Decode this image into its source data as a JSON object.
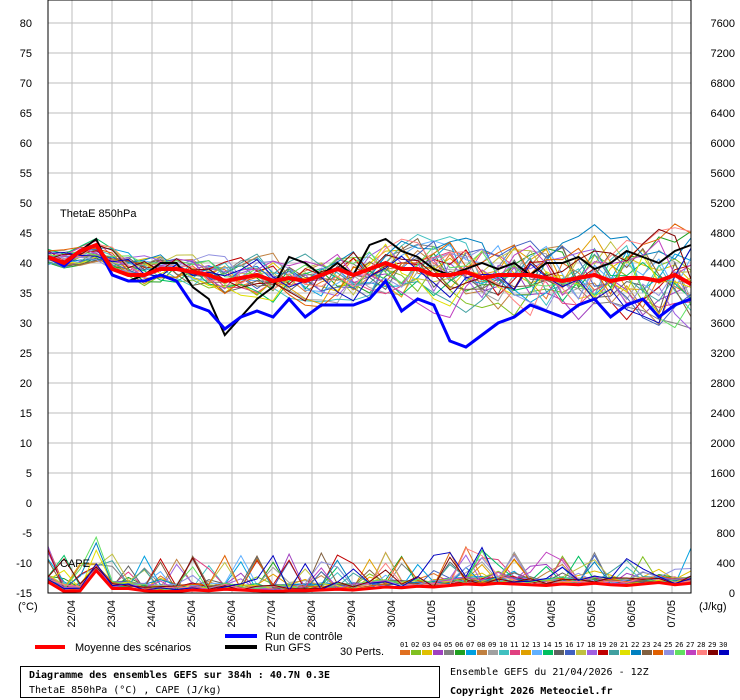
{
  "chart_data": {
    "type": "line",
    "left_axis": {
      "ticks": [
        "80",
        "75",
        "70",
        "65",
        "60",
        "55",
        "50",
        "45",
        "40",
        "35",
        "30",
        "25",
        "20",
        "15",
        "10",
        "5",
        "0",
        "-5",
        "-10",
        "-15"
      ],
      "unit": "(°C)",
      "range": [
        -15,
        80
      ]
    },
    "right_axis": {
      "ticks": [
        "7600",
        "7200",
        "6800",
        "6400",
        "6000",
        "5600",
        "5200",
        "4800",
        "4400",
        "4000",
        "3600",
        "3200",
        "2800",
        "2400",
        "2000",
        "1600",
        "1200",
        "800",
        "400",
        "0"
      ],
      "unit": "(J/kg)",
      "range": [
        0,
        7600
      ]
    },
    "x_ticks": [
      "22/04",
      "23/04",
      "24/04",
      "25/04",
      "26/04",
      "27/04",
      "28/04",
      "29/04",
      "30/04",
      "01/05",
      "02/05",
      "03/05",
      "04/05",
      "05/05",
      "06/05",
      "07/05"
    ],
    "panel_labels": [
      "ThetaE 850hPa",
      "CAPE"
    ],
    "grid": true,
    "series": [
      {
        "name": "Moyenne des scénarios",
        "color": "#ff0000",
        "values": [
          41,
          40,
          42,
          43,
          39,
          38,
          38,
          39,
          39,
          38.5,
          38,
          37,
          37.5,
          38,
          37,
          37.5,
          37,
          38,
          39,
          38,
          39,
          40,
          39,
          39,
          38,
          38,
          38.5,
          37.5,
          38,
          38,
          38,
          37.5,
          37,
          37.5,
          38,
          37,
          37.5,
          37.5,
          37,
          38,
          36.5
        ]
      },
      {
        "name": "Run de contrôle",
        "color": "#0000ff",
        "values": [
          41,
          39.5,
          42,
          43,
          38,
          37,
          37,
          38,
          37,
          33,
          32,
          29,
          31,
          32,
          31,
          34,
          31,
          33,
          33,
          33,
          34,
          37,
          32,
          34,
          33,
          27,
          26,
          28,
          30,
          31,
          33,
          32,
          31,
          33,
          34,
          31,
          33,
          34,
          31,
          33,
          34
        ]
      },
      {
        "name": "Run GFS",
        "color": "#000000",
        "values": [
          41,
          40,
          42,
          44,
          38,
          37,
          38,
          40,
          40,
          36,
          34,
          28,
          31,
          34,
          36,
          41,
          40,
          38,
          40,
          38,
          43,
          44,
          42,
          41,
          39,
          38,
          39,
          40,
          39,
          40,
          38,
          40,
          40,
          41,
          39,
          40,
          42,
          41,
          40,
          42,
          43
        ]
      }
    ],
    "cape_mean": [
      150,
      20,
      30,
      300,
      60,
      60,
      30,
      20,
      20,
      40,
      30,
      50,
      40,
      30,
      20,
      30,
      30,
      40,
      50,
      40,
      60,
      80,
      70,
      90,
      80,
      100,
      120,
      110,
      130,
      120,
      110,
      100,
      120,
      110,
      130,
      110,
      100,
      120,
      140,
      110,
      130
    ],
    "perturbations_label": "30 Perts.",
    "perturbation_numbers": [
      "01",
      "02",
      "03",
      "04",
      "05",
      "06",
      "07",
      "08",
      "09",
      "10",
      "11",
      "12",
      "13",
      "14",
      "15",
      "16",
      "17",
      "18",
      "19",
      "20",
      "21",
      "22",
      "23",
      "24",
      "25",
      "26",
      "27",
      "28",
      "29",
      "30"
    ],
    "perturbation_colors": [
      "#e07020",
      "#80c020",
      "#e0c000",
      "#a040c0",
      "#808080",
      "#20a020",
      "#00a0e0",
      "#c08040",
      "#a0a0a0",
      "#40c0c0",
      "#e04080",
      "#e0a000",
      "#60b0ff",
      "#00c060",
      "#606060",
      "#4060c0",
      "#c0c040",
      "#a060e0",
      "#c00000",
      "#40a0a0",
      "#e0e000",
      "#0080c0",
      "#806040",
      "#e06000",
      "#9090e0",
      "#60e060",
      "#c040c0",
      "#ff8080",
      "#800000",
      "#0000c0"
    ]
  },
  "legend": {
    "mean": "Moyenne des scénarios",
    "control": "Run de contrôle",
    "gfs": "Run GFS"
  },
  "info": {
    "title": "Diagramme des ensembles GEFS sur 384h : 40.7N 0.3E",
    "subtitle": "ThetaE 850hPa (°C) , CAPE (J/kg)",
    "run": "Ensemble GEFS du 21/04/2026 - 12Z",
    "copyright": "Copyright 2026 Meteociel.fr"
  }
}
